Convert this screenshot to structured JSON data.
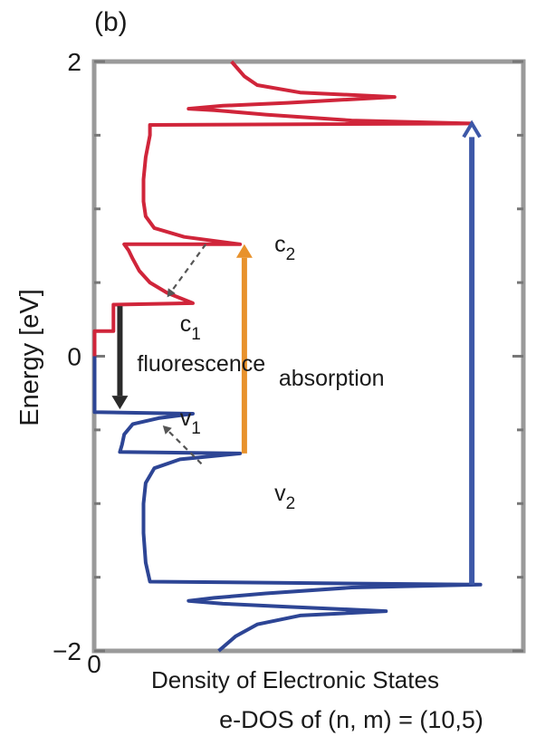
{
  "chart_data": {
    "type": "line",
    "panel_label": "(b)",
    "title": "",
    "ylabel": "Energy [eV]",
    "xlabel": "Density of Electronic States",
    "footer": "e-DOS of (n, m) = (10,5)",
    "ylim": [
      -2,
      2
    ],
    "yticks": [
      {
        "value": 2,
        "label": "2"
      },
      {
        "value": 0,
        "label": "0"
      },
      {
        "value": -2,
        "label": "−2"
      }
    ],
    "yticks_minor": [
      1.5,
      1.0,
      0.5,
      -0.5,
      -1.0,
      -1.5
    ],
    "xlim": [
      0,
      1
    ],
    "xticks": [
      {
        "value": 0,
        "label": "0"
      }
    ],
    "series": [
      {
        "color": "#d0253a",
        "points": [
          [
            0.001,
            0.0
          ],
          [
            0.001,
            0.17
          ],
          [
            0.045,
            0.17
          ],
          [
            0.045,
            0.35
          ],
          [
            0.23,
            0.36
          ],
          [
            0.17,
            0.43
          ],
          [
            0.13,
            0.5
          ],
          [
            0.105,
            0.58
          ],
          [
            0.09,
            0.66
          ],
          [
            0.08,
            0.72
          ],
          [
            0.07,
            0.76
          ],
          [
            0.34,
            0.76
          ],
          [
            0.21,
            0.81
          ],
          [
            0.14,
            0.87
          ],
          [
            0.12,
            0.95
          ],
          [
            0.115,
            1.05
          ],
          [
            0.115,
            1.2
          ],
          [
            0.12,
            1.35
          ],
          [
            0.13,
            1.5
          ],
          [
            0.13,
            1.57
          ],
          [
            0.88,
            1.58
          ],
          [
            0.6,
            1.6
          ],
          [
            0.4,
            1.64
          ],
          [
            0.28,
            1.67
          ],
          [
            0.22,
            1.68
          ],
          [
            0.3,
            1.7
          ],
          [
            0.45,
            1.72
          ],
          [
            0.7,
            1.76
          ],
          [
            0.48,
            1.79
          ],
          [
            0.38,
            1.84
          ],
          [
            0.35,
            1.9
          ],
          [
            0.32,
            2.0
          ]
        ]
      },
      {
        "color": "#2d4595",
        "points": [
          [
            0.001,
            0.0
          ],
          [
            0.001,
            -0.38
          ],
          [
            0.23,
            -0.39
          ],
          [
            0.15,
            -0.42
          ],
          [
            0.09,
            -0.46
          ],
          [
            0.07,
            -0.53
          ],
          [
            0.065,
            -0.6
          ],
          [
            0.06,
            -0.65
          ],
          [
            0.34,
            -0.66
          ],
          [
            0.2,
            -0.7
          ],
          [
            0.14,
            -0.76
          ],
          [
            0.12,
            -0.86
          ],
          [
            0.115,
            -1.0
          ],
          [
            0.115,
            -1.2
          ],
          [
            0.12,
            -1.4
          ],
          [
            0.13,
            -1.53
          ],
          [
            0.9,
            -1.55
          ],
          [
            0.6,
            -1.57
          ],
          [
            0.4,
            -1.61
          ],
          [
            0.28,
            -1.64
          ],
          [
            0.22,
            -1.66
          ],
          [
            0.3,
            -1.68
          ],
          [
            0.45,
            -1.7
          ],
          [
            0.68,
            -1.73
          ],
          [
            0.48,
            -1.76
          ],
          [
            0.38,
            -1.82
          ],
          [
            0.33,
            -1.9
          ],
          [
            0.29,
            -2.0
          ]
        ]
      }
    ],
    "transitions": [
      {
        "from": [
          0.35,
          -0.66
        ],
        "to": [
          0.35,
          0.76
        ],
        "color": "#e8922c",
        "style": "solid",
        "head": "filled"
      },
      {
        "from": [
          0.88,
          -1.55
        ],
        "to": [
          0.88,
          1.58
        ],
        "color": "#3d58a8",
        "style": "solid",
        "head": "open"
      },
      {
        "from": [
          0.06,
          0.34
        ],
        "to": [
          0.06,
          -0.36
        ],
        "color": "#2a2a2a",
        "style": "solid",
        "head": "filled"
      },
      {
        "from": [
          0.26,
          0.76
        ],
        "to": [
          0.17,
          0.4
        ],
        "color": "#555555",
        "style": "dashed",
        "head": "filled"
      },
      {
        "from": [
          0.25,
          -0.73
        ],
        "to": [
          0.16,
          -0.47
        ],
        "color": "#555555",
        "style": "dashed",
        "head": "filled"
      }
    ],
    "annotations": [
      {
        "base": "c",
        "sub": "2",
        "x": 0.42,
        "y": 0.71
      },
      {
        "base": "c",
        "sub": "1",
        "x": 0.2,
        "y": 0.17
      },
      {
        "base": "v",
        "sub": "1",
        "x": 0.2,
        "y": -0.47
      },
      {
        "base": "v",
        "sub": "2",
        "x": 0.42,
        "y": -0.98
      },
      {
        "text": "fluorescence",
        "x": 0.1,
        "y": -0.1
      },
      {
        "text": "absorption",
        "x": 0.43,
        "y": -0.2
      }
    ],
    "grid": false
  }
}
